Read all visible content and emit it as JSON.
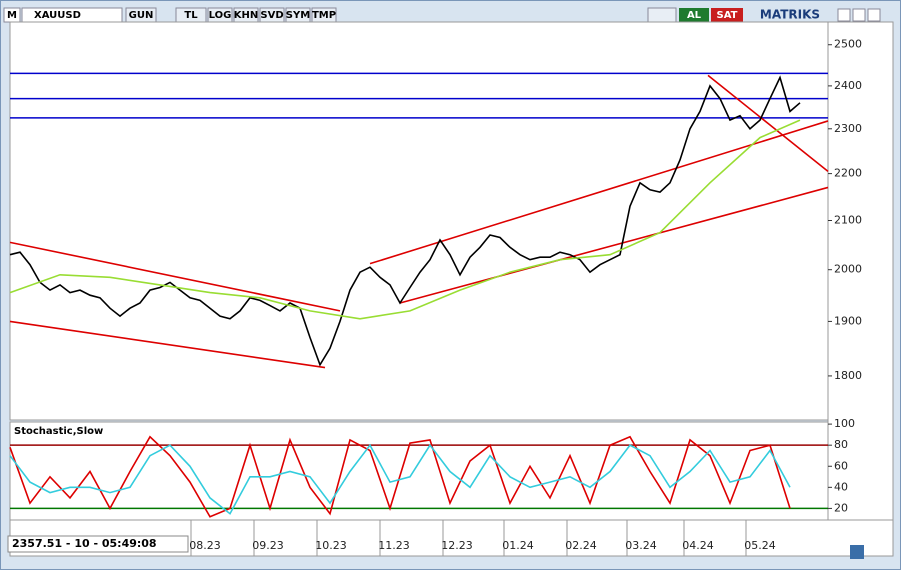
{
  "toolbar": {
    "symbol_icon": "M",
    "symbol": "XAUUSD",
    "buttons": [
      "GUN",
      "TL",
      "LOG",
      "KHN",
      "SVD",
      "SYM",
      "TMP"
    ],
    "buy": "AL",
    "sell": "SAT",
    "brand": "MATRIKS"
  },
  "status": "2357.51 - 10 - 05:49:08",
  "chart_data": [
    {
      "type": "line",
      "log": true,
      "xlim": [
        0,
        81.8
      ],
      "ylim": [
        1723,
        2557
      ],
      "yticks": [
        1800,
        1900,
        2000,
        2100,
        2200,
        2300,
        2400,
        2500
      ],
      "xticks": [
        {
          "value": 19.5,
          "label": "08.23"
        },
        {
          "value": 25.8,
          "label": "09.23"
        },
        {
          "value": 32.1,
          "label": "10.23"
        },
        {
          "value": 38.4,
          "label": "11.23"
        },
        {
          "value": 44.7,
          "label": "12.23"
        },
        {
          "value": 50.8,
          "label": "01.24"
        },
        {
          "value": 57.1,
          "label": "02.24"
        },
        {
          "value": 63.1,
          "label": "03.24"
        },
        {
          "value": 68.8,
          "label": "04.24"
        },
        {
          "value": 75.0,
          "label": "05.24"
        }
      ],
      "x": [
        0,
        1,
        2,
        3,
        4,
        5,
        6,
        7,
        8,
        9,
        10,
        11,
        12,
        13,
        14,
        15,
        16,
        17,
        18,
        19,
        20,
        21,
        22,
        23,
        24,
        25,
        26,
        27,
        28,
        29,
        30,
        31,
        32,
        33,
        34,
        35,
        36,
        37,
        38,
        39,
        40,
        41,
        42,
        43,
        44,
        45,
        46,
        47,
        48,
        49,
        50,
        51,
        52,
        53,
        54,
        55,
        56,
        57,
        58,
        59,
        60,
        61,
        62,
        63,
        64,
        65,
        66,
        67,
        68,
        69,
        70,
        71,
        72,
        73,
        74,
        75,
        76,
        77,
        78,
        79
      ],
      "series": [
        {
          "color": "#000000",
          "values": [
            2030,
            2035,
            2010,
            1975,
            1960,
            1970,
            1955,
            1960,
            1950,
            1945,
            1925,
            1910,
            1925,
            1935,
            1960,
            1965,
            1975,
            1960,
            1945,
            1940,
            1925,
            1910,
            1905,
            1920,
            1945,
            1940,
            1930,
            1920,
            1935,
            1925,
            1870,
            1820,
            1850,
            1900,
            1960,
            1995,
            2005,
            1985,
            1970,
            1935,
            1965,
            1995,
            2020,
            2060,
            2030,
            1990,
            2025,
            2045,
            2070,
            2065,
            2045,
            2030,
            2020,
            2025,
            2025,
            2035,
            2030,
            2020,
            1995,
            2010,
            2020,
            2030,
            2130,
            2180,
            2165,
            2160,
            2180,
            2230,
            2300,
            2340,
            2400,
            2370,
            2320,
            2330,
            2300,
            2320,
            2370,
            2420,
            2340,
            2360
          ]
        },
        {
          "color": "#99dd33",
          "x": [
            0,
            5,
            10,
            15,
            20,
            25,
            30,
            35,
            40,
            45,
            50,
            55,
            60,
            65,
            70,
            75,
            79
          ],
          "values": [
            1955,
            1990,
            1985,
            1970,
            1955,
            1945,
            1920,
            1905,
            1920,
            1960,
            1995,
            2020,
            2030,
            2075,
            2180,
            2280,
            2320
          ]
        }
      ],
      "levels": [
        2430,
        2370,
        2325
      ],
      "level_color": "#0000cc",
      "trendlines": [
        {
          "x": [
            0,
            33
          ],
          "values": [
            2055,
            1920
          ]
        },
        {
          "x": [
            0,
            31.5
          ],
          "values": [
            1900,
            1815
          ]
        },
        {
          "x": [
            36,
            81.8
          ],
          "values": [
            2012,
            2318
          ]
        },
        {
          "x": [
            39,
            81.8
          ],
          "values": [
            1935,
            2170
          ]
        },
        {
          "x": [
            69.8,
            81.8
          ],
          "values": [
            2425,
            2205
          ]
        }
      ],
      "trend_color": "#dd0000"
    },
    {
      "type": "line",
      "title": "Stochastic,Slow",
      "xlim": [
        0,
        81.8
      ],
      "ylim": [
        9,
        102
      ],
      "yticks": [
        20,
        40,
        60,
        80,
        100
      ],
      "x": [
        0,
        2,
        4,
        6,
        8,
        10,
        12,
        14,
        16,
        18,
        20,
        22,
        24,
        26,
        28,
        30,
        32,
        34,
        36,
        38,
        40,
        42,
        44,
        46,
        48,
        50,
        52,
        54,
        56,
        58,
        60,
        62,
        64,
        66,
        68,
        70,
        72,
        74,
        76,
        78
      ],
      "series": [
        {
          "color": "#dd0000",
          "values": [
            78,
            25,
            50,
            30,
            55,
            20,
            55,
            88,
            70,
            45,
            12,
            20,
            80,
            20,
            85,
            40,
            15,
            85,
            75,
            20,
            82,
            85,
            25,
            65,
            80,
            25,
            60,
            30,
            70,
            25,
            80,
            88,
            55,
            25,
            85,
            70,
            25,
            75,
            80,
            20
          ]
        },
        {
          "color": "#33ccdd",
          "values": [
            70,
            45,
            35,
            40,
            40,
            35,
            40,
            70,
            80,
            60,
            30,
            15,
            50,
            50,
            55,
            50,
            25,
            55,
            80,
            45,
            50,
            80,
            55,
            40,
            70,
            50,
            40,
            45,
            50,
            40,
            55,
            80,
            70,
            40,
            55,
            75,
            45,
            50,
            75,
            40
          ]
        }
      ],
      "levels": [
        {
          "value": 80,
          "color": "#990000"
        },
        {
          "value": 20,
          "color": "#007700"
        }
      ]
    }
  ]
}
